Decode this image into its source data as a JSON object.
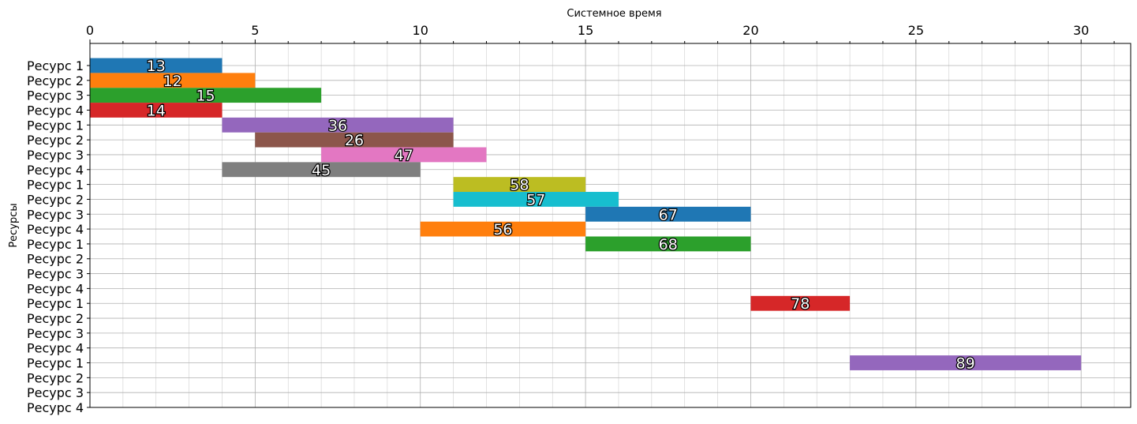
{
  "chart_data": {
    "type": "gantt",
    "xlabel": "Системное время",
    "ylabel": "Ресурсы",
    "xlim": [
      0,
      31.5
    ],
    "x_ticks": [
      0,
      5,
      10,
      15,
      20,
      25,
      30
    ],
    "x_minor_step": 1,
    "x_axis_position": "top",
    "grid": true,
    "rows": [
      "Ресурс 1",
      "Ресурс 2",
      "Ресурс 3",
      "Ресурс 4",
      "Ресурс 1",
      "Ресурс 2",
      "Ресурс 3",
      "Ресурс 4",
      "Ресурс 1",
      "Ресурс 2",
      "Ресурс 3",
      "Ресурс 4",
      "Ресурс 1",
      "Ресурс 2",
      "Ресурс 3",
      "Ресурс 4",
      "Ресурс 1",
      "Ресурс 2",
      "Ресурс 3",
      "Ресурс 4",
      "Ресурс 1",
      "Ресурс 2",
      "Ресурс 3",
      "Ресурс 4"
    ],
    "tasks": [
      {
        "row": 0,
        "start": 0,
        "end": 4,
        "label": "13",
        "color": "#1f77b4"
      },
      {
        "row": 1,
        "start": 0,
        "end": 5,
        "label": "12",
        "color": "#ff7f0e"
      },
      {
        "row": 2,
        "start": 0,
        "end": 7,
        "label": "15",
        "color": "#2ca02c"
      },
      {
        "row": 3,
        "start": 0,
        "end": 4,
        "label": "14",
        "color": "#d62728"
      },
      {
        "row": 4,
        "start": 4,
        "end": 11,
        "label": "36",
        "color": "#9467bd"
      },
      {
        "row": 5,
        "start": 5,
        "end": 11,
        "label": "26",
        "color": "#8c564b"
      },
      {
        "row": 6,
        "start": 7,
        "end": 12,
        "label": "47",
        "color": "#e377c2"
      },
      {
        "row": 7,
        "start": 4,
        "end": 10,
        "label": "45",
        "color": "#7f7f7f"
      },
      {
        "row": 8,
        "start": 11,
        "end": 15,
        "label": "58",
        "color": "#bcbd22"
      },
      {
        "row": 9,
        "start": 11,
        "end": 16,
        "label": "57",
        "color": "#17becf"
      },
      {
        "row": 10,
        "start": 15,
        "end": 20,
        "label": "67",
        "color": "#1f77b4"
      },
      {
        "row": 11,
        "start": 10,
        "end": 15,
        "label": "56",
        "color": "#ff7f0e"
      },
      {
        "row": 12,
        "start": 15,
        "end": 20,
        "label": "68",
        "color": "#2ca02c"
      },
      {
        "row": 16,
        "start": 20,
        "end": 23,
        "label": "78",
        "color": "#d62728"
      },
      {
        "row": 20,
        "start": 23,
        "end": 30,
        "label": "89",
        "color": "#9467bd"
      }
    ]
  }
}
